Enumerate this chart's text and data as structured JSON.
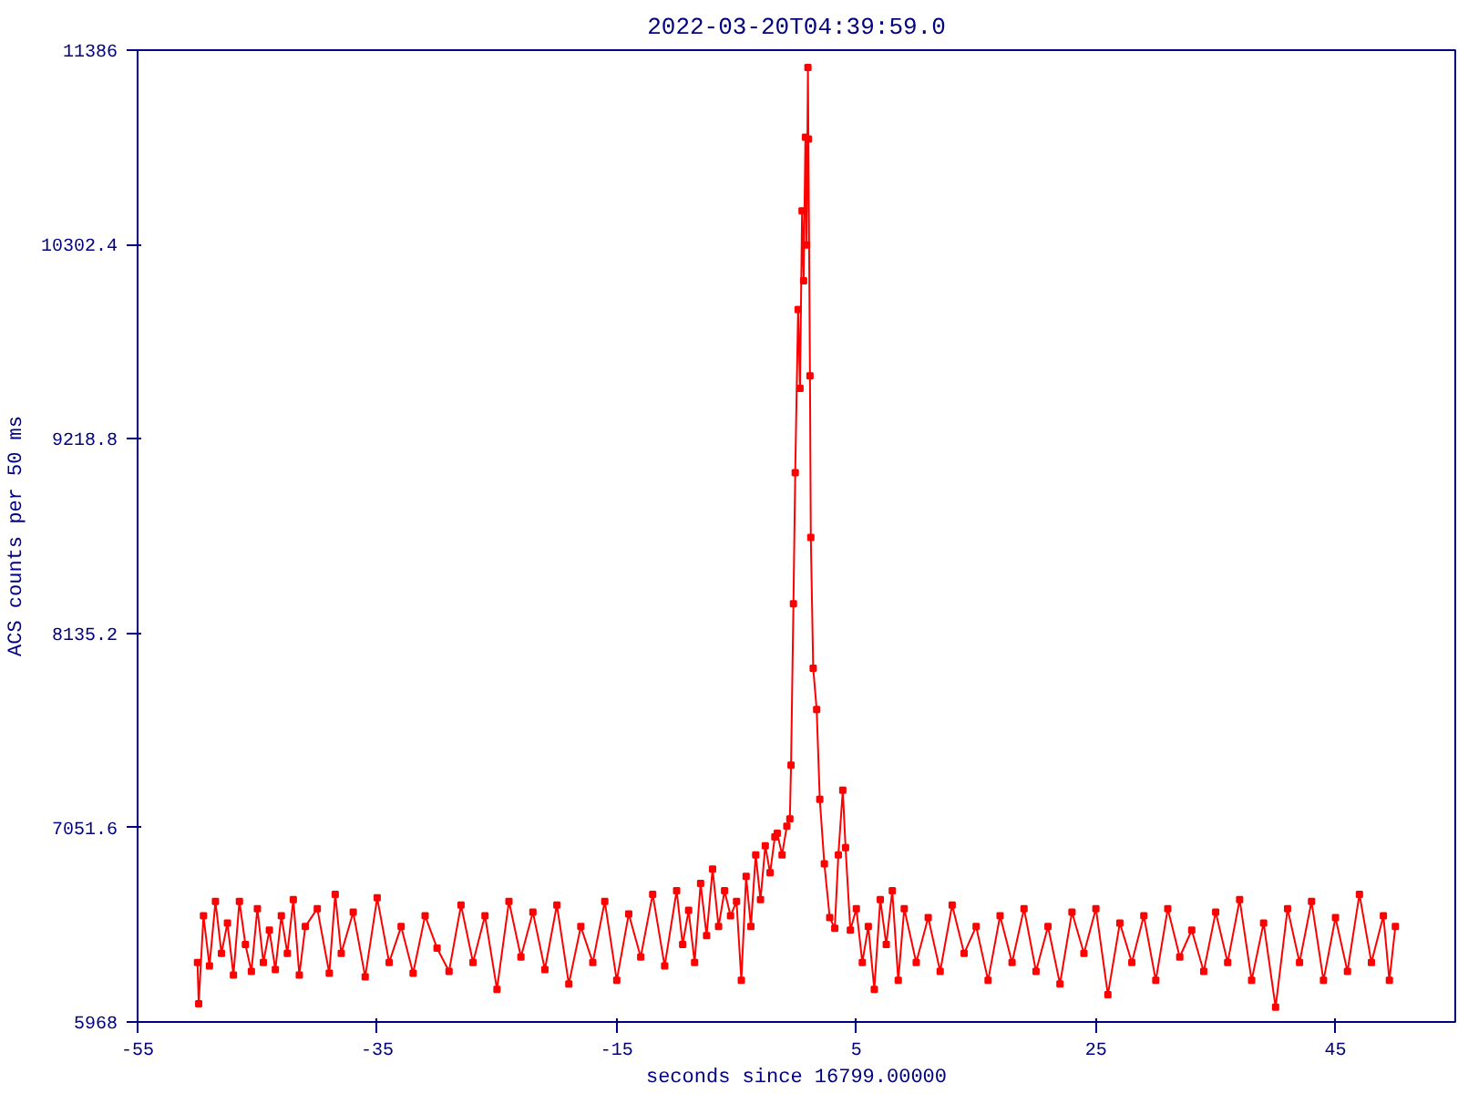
{
  "chart_data": {
    "type": "line",
    "title": "2022-03-20T04:39:59.0",
    "xlabel": "seconds since 16799.00000",
    "ylabel": "ACS counts per 50 ms",
    "xlim": [
      -55,
      55
    ],
    "ylim": [
      5968,
      11386
    ],
    "xticks": [
      -55,
      -35,
      -15,
      5,
      25,
      45
    ],
    "yticks": [
      5968,
      7051.6,
      8135.2,
      9218.8,
      10302.4,
      11386
    ],
    "grid": false,
    "marker": "square",
    "line_style": "solid",
    "series": [
      {
        "color": "#ff0000",
        "x": [
          -50,
          -49.9,
          -49.5,
          -49,
          -48.5,
          -48,
          -47.5,
          -47,
          -46.5,
          -46,
          -45.5,
          -45,
          -44.5,
          -44,
          -43.5,
          -43,
          -42.5,
          -42,
          -41.5,
          -41,
          -40,
          -39,
          -38.5,
          -38,
          -37,
          -36,
          -35,
          -34,
          -33,
          -32,
          -31,
          -30,
          -29,
          -28,
          -27,
          -26,
          -25,
          -24,
          -23,
          -22,
          -21,
          -20,
          -19,
          -18,
          -17,
          -16,
          -15,
          -14,
          -13,
          -12,
          -11,
          -10,
          -9.5,
          -9,
          -8.5,
          -8,
          -7.5,
          -7,
          -6.5,
          -6,
          -5.5,
          -5,
          -4.6,
          -4.2,
          -3.8,
          -3.4,
          -3,
          -2.6,
          -2.2,
          -1.8,
          -1.6,
          -1.2,
          -0.8,
          -0.55,
          -0.45,
          -0.25,
          -0.1,
          0.14,
          0.3,
          0.47,
          0.6,
          0.75,
          0.85,
          0.96,
          1.0,
          1.13,
          1.2,
          1.4,
          1.69,
          1.95,
          2.33,
          2.78,
          3.2,
          3.5,
          3.87,
          4.1,
          4.5,
          5,
          5.5,
          6,
          6.5,
          7,
          7.5,
          8,
          8.5,
          9,
          10,
          11,
          12,
          13,
          14,
          15,
          16,
          17,
          18,
          19,
          20,
          21,
          22,
          23,
          24,
          25,
          26,
          27,
          28,
          29,
          30,
          31,
          32,
          33,
          34,
          35,
          36,
          37,
          38,
          39,
          40,
          41,
          42,
          43,
          44,
          45,
          46,
          47,
          48,
          49,
          49.5,
          50
        ],
        "values": [
          6300,
          6070,
          6560,
          6280,
          6640,
          6350,
          6520,
          6230,
          6640,
          6400,
          6250,
          6600,
          6300,
          6480,
          6260,
          6560,
          6350,
          6650,
          6230,
          6500,
          6600,
          6240,
          6680,
          6350,
          6580,
          6220,
          6660,
          6300,
          6500,
          6240,
          6560,
          6380,
          6250,
          6620,
          6300,
          6560,
          6150,
          6640,
          6330,
          6580,
          6260,
          6620,
          6180,
          6500,
          6300,
          6640,
          6200,
          6570,
          6330,
          6680,
          6280,
          6700,
          6400,
          6590,
          6300,
          6740,
          6450,
          6820,
          6500,
          6700,
          6560,
          6640,
          6200,
          6780,
          6500,
          6900,
          6650,
          6950,
          6800,
          7000,
          7020,
          6900,
          7060,
          7100,
          7400,
          8300,
          9030,
          9940,
          9500,
          10490,
          10100,
          10900,
          10300,
          11290,
          10890,
          9570,
          8670,
          7940,
          7710,
          7210,
          6850,
          6550,
          6490,
          6900,
          7260,
          6940,
          6480,
          6600,
          6300,
          6500,
          6150,
          6650,
          6400,
          6700,
          6200,
          6600,
          6300,
          6550,
          6250,
          6620,
          6350,
          6500,
          6200,
          6560,
          6300,
          6600,
          6250,
          6500,
          6180,
          6580,
          6350,
          6600,
          6120,
          6520,
          6300,
          6560,
          6200,
          6600,
          6330,
          6480,
          6250,
          6580,
          6300,
          6650,
          6200,
          6520,
          6050,
          6600,
          6300,
          6640,
          6200,
          6550,
          6250,
          6680,
          6300,
          6560,
          6200,
          6500
        ]
      }
    ]
  }
}
